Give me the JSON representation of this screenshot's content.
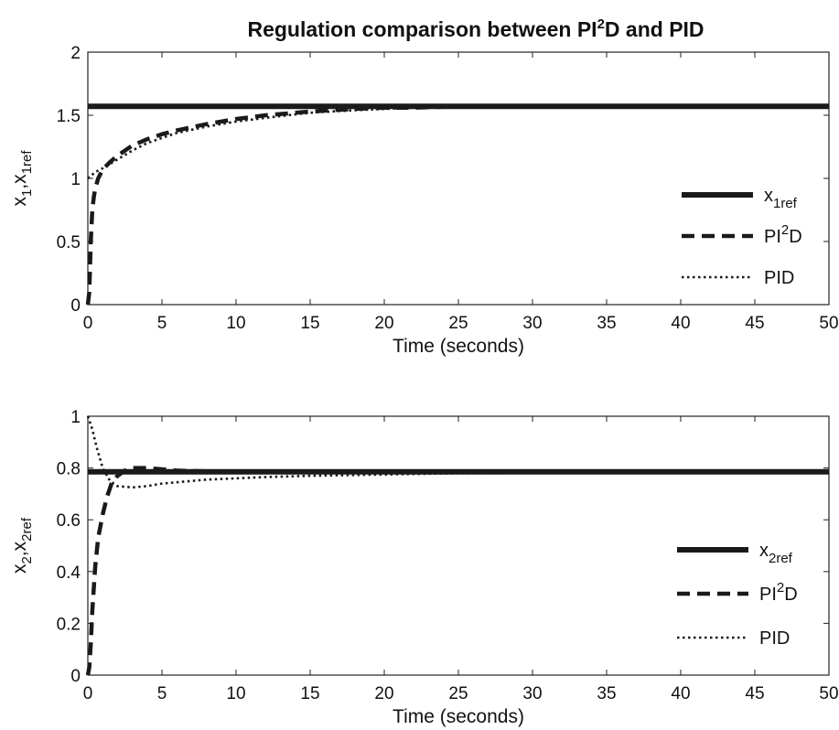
{
  "title": {
    "main": "Regulation comparison between PI",
    "sup": "2",
    "tail": "D and PID"
  },
  "chart_data": [
    {
      "type": "line",
      "xlabel": "Time (seconds)",
      "ylabel": {
        "a": "x",
        "a_sub": "1",
        "sep": ",x",
        "b_sub": "1ref"
      },
      "xlim": [
        0,
        50
      ],
      "ylim": [
        0,
        2
      ],
      "xticks": [
        "0",
        "5",
        "10",
        "15",
        "20",
        "25",
        "30",
        "35",
        "40",
        "45",
        "50"
      ],
      "yticks": [
        "0",
        "0.5",
        "1",
        "1.5",
        "2"
      ],
      "legend_position": "right",
      "legend": [
        {
          "base": "x",
          "sub": "1ref",
          "sup": "",
          "tail": "",
          "style": "solid"
        },
        {
          "base": "PI",
          "sub": "",
          "sup": "2",
          "tail": "D",
          "style": "dashed"
        },
        {
          "base": "PID",
          "sub": "",
          "sup": "",
          "tail": "",
          "style": "dotted"
        }
      ],
      "series": [
        {
          "key": "ref",
          "style": "solid",
          "x": [
            0,
            50
          ],
          "y": [
            1.57,
            1.57
          ]
        },
        {
          "key": "pi2d",
          "style": "dashed",
          "x": [
            0,
            0.1,
            0.2,
            0.3,
            0.4,
            0.5,
            0.7,
            1,
            1.5,
            2,
            3,
            4,
            5,
            6,
            8,
            10,
            12,
            15,
            18,
            20,
            22,
            25
          ],
          "y": [
            0,
            0.1,
            0.5,
            0.75,
            0.85,
            0.92,
            1.0,
            1.07,
            1.13,
            1.18,
            1.26,
            1.31,
            1.35,
            1.38,
            1.43,
            1.47,
            1.5,
            1.53,
            1.55,
            1.56,
            1.56,
            1.57
          ]
        },
        {
          "key": "pid",
          "style": "dotted",
          "x": [
            0,
            0.5,
            1,
            2,
            3,
            4,
            5,
            6,
            8,
            10,
            12,
            15,
            18,
            20,
            22,
            25,
            27
          ],
          "y": [
            1.0,
            1.05,
            1.08,
            1.15,
            1.22,
            1.28,
            1.32,
            1.36,
            1.41,
            1.45,
            1.48,
            1.52,
            1.54,
            1.55,
            1.56,
            1.57,
            1.57
          ]
        }
      ]
    },
    {
      "type": "line",
      "xlabel": "Time (seconds)",
      "ylabel": {
        "a": "x",
        "a_sub": "2",
        "sep": ",x",
        "b_sub": "2ref"
      },
      "xlim": [
        0,
        50
      ],
      "ylim": [
        0,
        1
      ],
      "xticks": [
        "0",
        "5",
        "10",
        "15",
        "20",
        "25",
        "30",
        "35",
        "40",
        "45",
        "50"
      ],
      "yticks": [
        "0",
        "0.2",
        "0.4",
        "0.6",
        "0.8",
        "1"
      ],
      "legend_position": "right",
      "legend": [
        {
          "base": "x",
          "sub": "2ref",
          "sup": "",
          "tail": "",
          "style": "solid"
        },
        {
          "base": "PI",
          "sub": "",
          "sup": "2",
          "tail": "D",
          "style": "dashed"
        },
        {
          "base": "PID",
          "sub": "",
          "sup": "",
          "tail": "",
          "style": "dotted"
        }
      ],
      "series": [
        {
          "key": "ref",
          "style": "solid",
          "x": [
            0,
            50
          ],
          "y": [
            0.785,
            0.785
          ]
        },
        {
          "key": "pi2d",
          "style": "dashed",
          "x": [
            0,
            0.1,
            0.2,
            0.3,
            0.5,
            0.7,
            1,
            1.3,
            1.6,
            2,
            2.5,
            3,
            4,
            5,
            6,
            8
          ],
          "y": [
            0,
            0.03,
            0.12,
            0.25,
            0.42,
            0.53,
            0.62,
            0.69,
            0.74,
            0.77,
            0.79,
            0.8,
            0.8,
            0.795,
            0.79,
            0.787
          ]
        },
        {
          "key": "pid",
          "style": "dotted",
          "x": [
            0,
            0.3,
            0.6,
            1,
            1.5,
            2,
            3,
            4,
            5,
            6,
            8,
            10,
            12,
            15,
            20,
            25,
            28
          ],
          "y": [
            1.0,
            0.95,
            0.88,
            0.8,
            0.75,
            0.73,
            0.725,
            0.73,
            0.74,
            0.745,
            0.755,
            0.76,
            0.765,
            0.77,
            0.775,
            0.78,
            0.78
          ]
        }
      ]
    }
  ]
}
